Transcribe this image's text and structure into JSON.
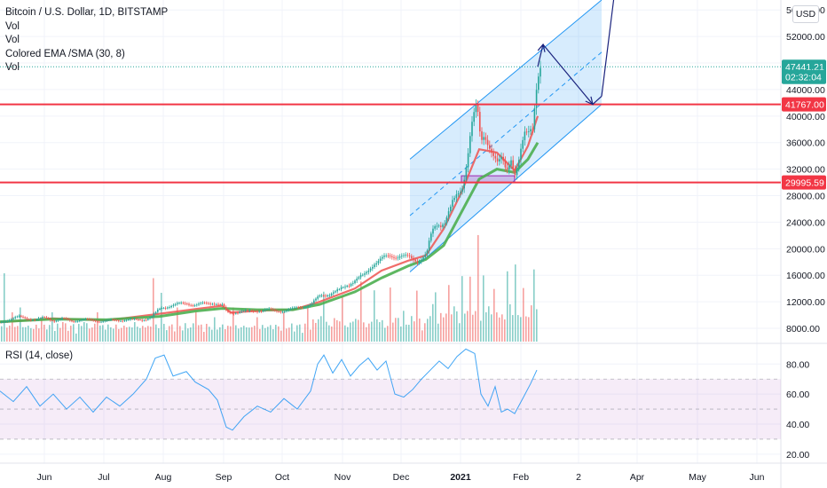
{
  "header": {
    "title": "Bitcoin / U.S. Dollar, 1D, BITSTAMP",
    "indicators": [
      "Vol",
      "Vol",
      "Colored EMA /SMA (30, 8)",
      "Vol"
    ],
    "currency": "USD"
  },
  "rsi": {
    "label": "RSI (14, close)"
  },
  "chart_data": {
    "type": "candlestick",
    "price_axis": {
      "ticks": [
        8000,
        12000,
        16000,
        20000,
        24000,
        28000,
        32000,
        36000,
        40000,
        44000,
        48000,
        52000,
        56000
      ],
      "tick_labels": [
        "8000.00",
        "12000.00",
        "16000.00",
        "20000.00",
        "24000.00",
        "28000.00",
        "32000.00",
        "36000.00",
        "40000.00",
        "44000.00",
        "48000.00",
        "52000.00",
        "56000.00"
      ],
      "ylim": [
        6000,
        57500
      ]
    },
    "rsi_axis": {
      "ticks": [
        20,
        40,
        60,
        80
      ],
      "tick_labels": [
        "20.00",
        "40.00",
        "60.00",
        "80.00"
      ],
      "ylim": [
        14,
        92
      ],
      "band": [
        30,
        70
      ]
    },
    "time_axis": {
      "labels": [
        "Jun",
        "Jul",
        "Aug",
        "Sep",
        "Oct",
        "Nov",
        "Dec",
        "2021",
        "Feb",
        "2",
        "Apr",
        "May",
        "Jun"
      ]
    },
    "price_badges": [
      {
        "label": "47441.21",
        "value": 47441.21,
        "color": "#26a69a"
      },
      {
        "label": "02:32:04",
        "value": 45900,
        "color": "#26a69a"
      },
      {
        "label": "41767.00",
        "value": 41767,
        "color": "#f23645"
      },
      {
        "label": "29995.59",
        "value": 29995.59,
        "color": "#f23645"
      }
    ],
    "horizontal_levels": [
      41767,
      29995.59
    ],
    "last_price": 47441.21,
    "price_path": [
      [
        0,
        8900
      ],
      [
        10,
        9400
      ],
      [
        20,
        9700
      ],
      [
        30,
        9500
      ],
      [
        40,
        9300
      ],
      [
        50,
        9600
      ],
      [
        60,
        9200
      ],
      [
        70,
        9400
      ],
      [
        80,
        9100
      ],
      [
        90,
        9300
      ],
      [
        100,
        9200
      ],
      [
        110,
        9150
      ],
      [
        120,
        9100
      ],
      [
        130,
        9200
      ],
      [
        140,
        9300
      ],
      [
        150,
        9250
      ],
      [
        160,
        9300
      ],
      [
        170,
        9700
      ],
      [
        180,
        11000
      ],
      [
        190,
        11400
      ],
      [
        200,
        11600
      ],
      [
        210,
        11800
      ],
      [
        220,
        11500
      ],
      [
        230,
        11700
      ],
      [
        240,
        11900
      ],
      [
        250,
        11400
      ],
      [
        255,
        10400
      ],
      [
        260,
        10300
      ],
      [
        270,
        10600
      ],
      [
        280,
        10500
      ],
      [
        290,
        10700
      ],
      [
        300,
        10800
      ],
      [
        310,
        10600
      ],
      [
        320,
        10700
      ],
      [
        330,
        10900
      ],
      [
        340,
        11300
      ],
      [
        350,
        11600
      ],
      [
        360,
        12900
      ],
      [
        370,
        13200
      ],
      [
        380,
        13600
      ],
      [
        390,
        14500
      ],
      [
        400,
        15300
      ],
      [
        410,
        16000
      ],
      [
        420,
        17800
      ],
      [
        430,
        18500
      ],
      [
        440,
        18900
      ],
      [
        450,
        19000
      ],
      [
        460,
        18600
      ],
      [
        470,
        18200
      ],
      [
        480,
        19200
      ],
      [
        485,
        22000
      ],
      [
        490,
        23500
      ],
      [
        500,
        24000
      ],
      [
        510,
        27000
      ],
      [
        520,
        29300
      ],
      [
        525,
        33000
      ],
      [
        530,
        38000
      ],
      [
        535,
        41000
      ],
      [
        538,
        40000
      ],
      [
        541,
        36000
      ],
      [
        545,
        37500
      ],
      [
        550,
        36000
      ],
      [
        555,
        34000
      ],
      [
        560,
        32500
      ],
      [
        565,
        33500
      ],
      [
        570,
        32000
      ],
      [
        575,
        34000
      ],
      [
        580,
        31000
      ],
      [
        585,
        33500
      ],
      [
        590,
        37000
      ],
      [
        595,
        38000
      ],
      [
        600,
        39000
      ],
      [
        603,
        44000
      ],
      [
        606,
        46000
      ],
      [
        610,
        47441
      ]
    ],
    "ema_path": [
      [
        0,
        9000
      ],
      [
        60,
        9400
      ],
      [
        120,
        9300
      ],
      [
        180,
        9800
      ],
      [
        220,
        10600
      ],
      [
        250,
        11000
      ],
      [
        290,
        10800
      ],
      [
        330,
        10800
      ],
      [
        360,
        11600
      ],
      [
        400,
        13500
      ],
      [
        430,
        15600
      ],
      [
        460,
        17400
      ],
      [
        480,
        18400
      ],
      [
        500,
        20500
      ],
      [
        520,
        25500
      ],
      [
        540,
        30500
      ],
      [
        560,
        32000
      ],
      [
        580,
        31500
      ],
      [
        595,
        33500
      ],
      [
        606,
        36000
      ]
    ],
    "sma_path": [
      [
        0,
        8900
      ],
      [
        60,
        9500
      ],
      [
        120,
        9200
      ],
      [
        180,
        10200
      ],
      [
        220,
        10900
      ],
      [
        250,
        11400
      ],
      [
        260,
        10400
      ],
      [
        300,
        10700
      ],
      [
        330,
        10800
      ],
      [
        360,
        12000
      ],
      [
        400,
        14000
      ],
      [
        430,
        16700
      ],
      [
        460,
        18200
      ],
      [
        480,
        19000
      ],
      [
        500,
        23000
      ],
      [
        520,
        28500
      ],
      [
        540,
        35000
      ],
      [
        560,
        34500
      ],
      [
        580,
        31800
      ],
      [
        595,
        35500
      ],
      [
        606,
        40000
      ]
    ],
    "volume_bars": [
      [
        3,
        0.7
      ],
      [
        13,
        0.3
      ],
      [
        22,
        0.35
      ],
      [
        45,
        0.25
      ],
      [
        58,
        0.3
      ],
      [
        70,
        0.2
      ],
      [
        95,
        0.2
      ],
      [
        108,
        0.3
      ],
      [
        130,
        0.15
      ],
      [
        152,
        0.2
      ],
      [
        172,
        0.65
      ],
      [
        180,
        0.5
      ],
      [
        200,
        0.35
      ],
      [
        220,
        0.3
      ],
      [
        240,
        0.25
      ],
      [
        262,
        0.35
      ],
      [
        290,
        0.25
      ],
      [
        320,
        0.3
      ],
      [
        345,
        0.35
      ],
      [
        365,
        0.45
      ],
      [
        385,
        0.4
      ],
      [
        405,
        0.55
      ],
      [
        420,
        0.45
      ],
      [
        440,
        0.5
      ],
      [
        455,
        0.3
      ],
      [
        470,
        0.45
      ],
      [
        490,
        0.35
      ],
      [
        505,
        0.5
      ],
      [
        520,
        0.6
      ],
      [
        530,
        0.55
      ],
      [
        537,
        0.95
      ],
      [
        545,
        0.6
      ],
      [
        555,
        0.45
      ],
      [
        570,
        0.55
      ],
      [
        580,
        0.75
      ],
      [
        590,
        0.4
      ],
      [
        600,
        0.6
      ],
      [
        605,
        0.3
      ]
    ],
    "rsi_path": [
      [
        0,
        62
      ],
      [
        15,
        55
      ],
      [
        30,
        65
      ],
      [
        45,
        52
      ],
      [
        60,
        60
      ],
      [
        75,
        50
      ],
      [
        90,
        58
      ],
      [
        105,
        48
      ],
      [
        120,
        58
      ],
      [
        135,
        52
      ],
      [
        150,
        60
      ],
      [
        165,
        70
      ],
      [
        175,
        84
      ],
      [
        185,
        86
      ],
      [
        195,
        72
      ],
      [
        210,
        75
      ],
      [
        220,
        68
      ],
      [
        235,
        63
      ],
      [
        245,
        56
      ],
      [
        255,
        38
      ],
      [
        262,
        36
      ],
      [
        275,
        45
      ],
      [
        290,
        52
      ],
      [
        305,
        48
      ],
      [
        320,
        57
      ],
      [
        335,
        50
      ],
      [
        350,
        62
      ],
      [
        358,
        80
      ],
      [
        365,
        86
      ],
      [
        375,
        74
      ],
      [
        385,
        83
      ],
      [
        395,
        72
      ],
      [
        405,
        79
      ],
      [
        415,
        84
      ],
      [
        425,
        76
      ],
      [
        435,
        82
      ],
      [
        445,
        60
      ],
      [
        455,
        58
      ],
      [
        465,
        63
      ],
      [
        475,
        70
      ],
      [
        485,
        76
      ],
      [
        495,
        82
      ],
      [
        505,
        77
      ],
      [
        515,
        85
      ],
      [
        525,
        90
      ],
      [
        535,
        87
      ],
      [
        542,
        60
      ],
      [
        550,
        52
      ],
      [
        558,
        65
      ],
      [
        565,
        48
      ],
      [
        572,
        50
      ],
      [
        580,
        47
      ],
      [
        590,
        58
      ],
      [
        598,
        67
      ],
      [
        605,
        76
      ]
    ],
    "channel": {
      "x_start": 462,
      "x_end": 678,
      "upper_start": 33500,
      "upper_end": 57500,
      "lower_start": 16500,
      "lower_end": 41767
    },
    "projection": [
      [
        606,
        47441
      ],
      [
        612,
        50800
      ],
      [
        668,
        41767
      ],
      [
        678,
        43000
      ],
      [
        692,
        58000
      ]
    ],
    "consolidation_box": {
      "x_start": 520,
      "x_end": 580,
      "top": 31000,
      "bottom": 29995.59
    }
  }
}
